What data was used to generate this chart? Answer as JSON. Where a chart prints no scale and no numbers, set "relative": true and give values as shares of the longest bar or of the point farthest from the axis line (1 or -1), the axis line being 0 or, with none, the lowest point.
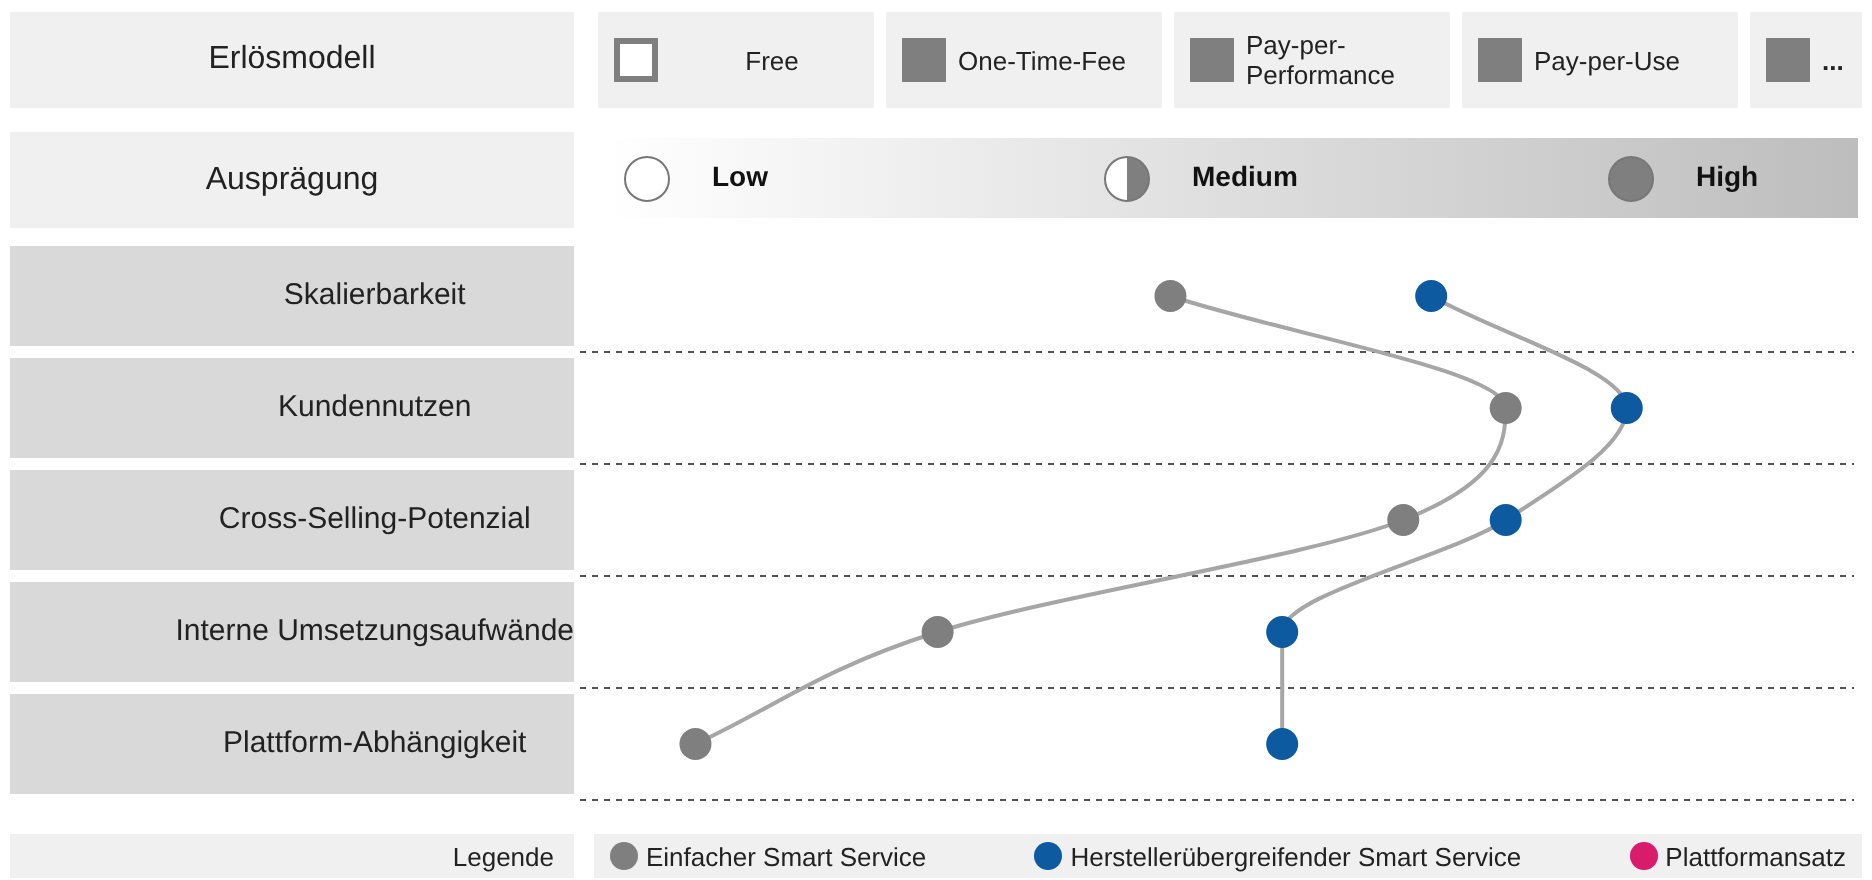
{
  "chart_data": {
    "type": "line",
    "orientation": "horizontal",
    "xlabel": "Ausprägung",
    "legend_title": "Legende",
    "categories": [
      "Skalierbarkeit",
      "Kundennutzen",
      "Cross-Selling-Potenzial",
      "Interne Umsetzungsaufwände",
      "Plattform-Abhängigkeit"
    ],
    "series": [
      {
        "name": "Einfacher Smart Service",
        "color": "#7f7f7f",
        "values": [
          0.51,
          0.87,
          0.76,
          0.26,
          0
        ]
      },
      {
        "name": "Herstellerübergreifender Smart Service",
        "color": "#0e5aa0",
        "values": [
          0.79,
          1,
          0.87,
          0.63,
          0.63
        ]
      },
      {
        "name": "Plattformansatz",
        "color": "#d81b6a",
        "values": [
          null,
          null,
          null,
          null,
          null
        ]
      }
    ],
    "relative": true,
    "grid": "y",
    "marker": "circle",
    "legend": "bottom",
    "annotations": [
      "Erlösmodell",
      "Free",
      "One-Time-Fee",
      "Pay-per-Performance",
      "Pay-per-Use",
      "...",
      "Low",
      "Medium",
      "High"
    ]
  }
}
